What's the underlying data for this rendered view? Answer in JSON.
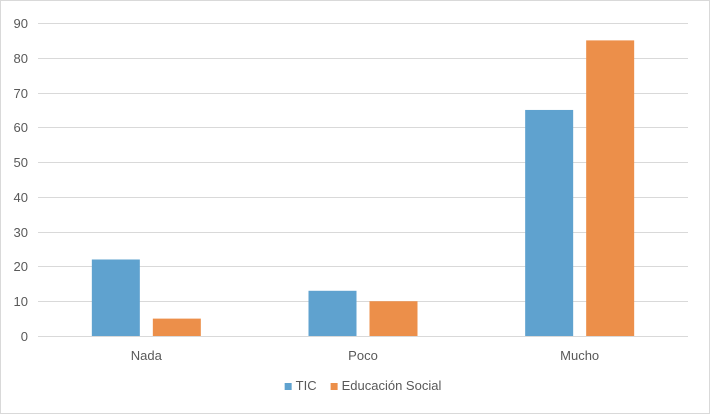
{
  "chart_data": {
    "type": "bar",
    "title": "",
    "xlabel": "",
    "ylabel": "",
    "categories": [
      "Nada",
      "Poco",
      "Mucho"
    ],
    "series": [
      {
        "name": "TIC",
        "values": [
          22,
          13,
          65
        ],
        "color": "#5fa2cf"
      },
      {
        "name": "Educación Social",
        "values": [
          5,
          10,
          85
        ],
        "color": "#ec8f4a"
      }
    ],
    "ylim": [
      0,
      90
    ],
    "yticks": [
      0,
      10,
      20,
      30,
      40,
      50,
      60,
      70,
      80,
      90
    ],
    "grid": true,
    "legend_position": "bottom-center",
    "gridline_color": "#d9d9d9",
    "text_color": "#595959"
  }
}
